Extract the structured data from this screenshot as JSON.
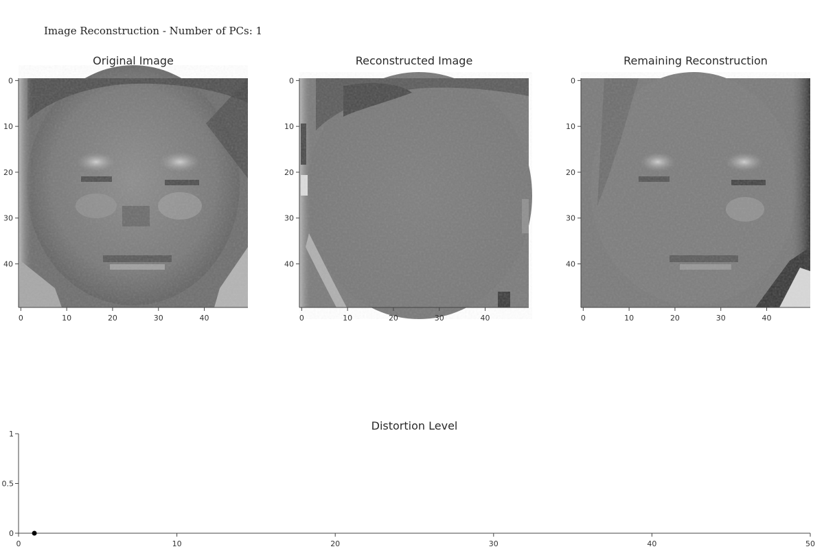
{
  "figure": {
    "title": "Image Reconstruction - Number of PCs: 1"
  },
  "chart_data": [
    {
      "type": "heatmap",
      "title": "Original Image",
      "colormap": "gray",
      "x_ticks": [
        "0",
        "10",
        "20",
        "30",
        "40"
      ],
      "y_ticks": [
        "0",
        "10",
        "20",
        "30",
        "40"
      ],
      "xlim": [
        0,
        50
      ],
      "ylim": [
        0,
        50
      ],
      "grid": false
    },
    {
      "type": "heatmap",
      "title": "Reconstructed Image",
      "colormap": "gray",
      "x_ticks": [
        "0",
        "10",
        "20",
        "30",
        "40"
      ],
      "y_ticks": [
        "0",
        "10",
        "20",
        "30",
        "40"
      ],
      "xlim": [
        0,
        50
      ],
      "ylim": [
        0,
        50
      ],
      "grid": false
    },
    {
      "type": "heatmap",
      "title": "Remaining Reconstruction",
      "colormap": "gray",
      "x_ticks": [
        "0",
        "10",
        "20",
        "30",
        "40"
      ],
      "y_ticks": [
        "0",
        "10",
        "20",
        "30",
        "40"
      ],
      "xlim": [
        0,
        50
      ],
      "ylim": [
        0,
        50
      ],
      "grid": false
    },
    {
      "type": "scatter",
      "title": "Distortion Level",
      "x": [
        1
      ],
      "y": [
        0
      ],
      "x_ticks": [
        "0",
        "10",
        "20",
        "30",
        "40",
        "50"
      ],
      "y_ticks": [
        "0",
        "0.5",
        "1"
      ],
      "xlim": [
        0,
        50
      ],
      "ylim": [
        0,
        1
      ],
      "marker_color": "#000000",
      "grid": false
    }
  ]
}
